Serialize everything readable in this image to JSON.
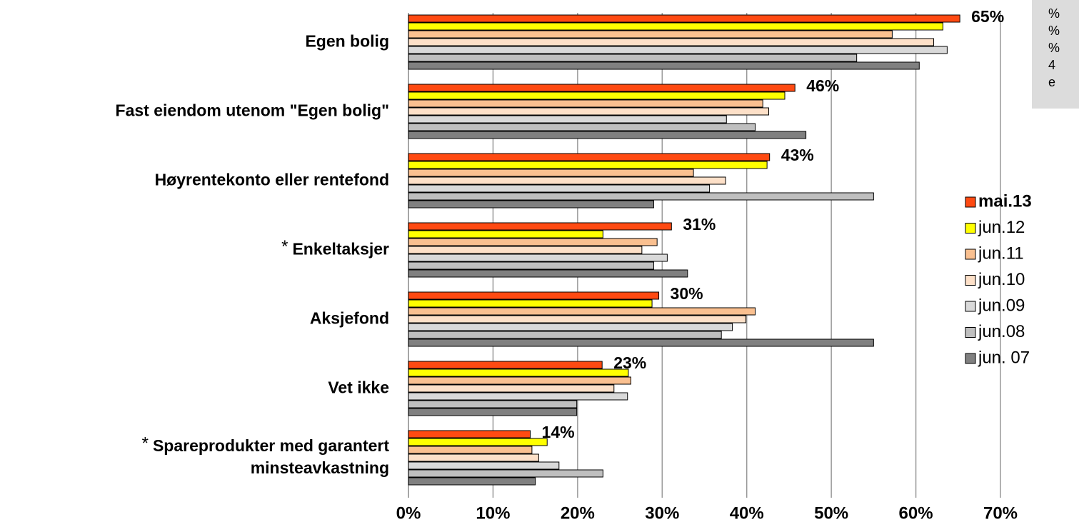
{
  "chart_data": {
    "type": "hbar",
    "categories": [
      "Egen bolig",
      "Fast eiendom utenom \"Egen bolig\"",
      "Høyrentekonto eller rentefond",
      "Enkeltaksjer",
      "Aksjefond",
      "Vet ikke",
      [
        "Spareprodukter med garantert",
        "minsteavkastning"
      ]
    ],
    "star_symbol": "*",
    "starred_categories": [
      3,
      6
    ],
    "series": [
      {
        "name": "mai.13",
        "color": "#ff4a12",
        "values": [
          65.2,
          45.7,
          42.7,
          31.1,
          29.6,
          22.9,
          14.4
        ],
        "value_labels": [
          "65%",
          "46%",
          "43%",
          "31%",
          "30%",
          "23%",
          "14%"
        ]
      },
      {
        "name": "jun.12",
        "color": "#ffff00",
        "values": [
          63.2,
          44.5,
          42.4,
          23.0,
          28.8,
          26.0,
          16.4
        ]
      },
      {
        "name": "jun.11",
        "color": "#fac090",
        "values": [
          57.2,
          41.9,
          33.7,
          29.4,
          41.0,
          26.3,
          14.6
        ]
      },
      {
        "name": "jun.10",
        "color": "#fde0c8",
        "values": [
          62.1,
          42.6,
          37.5,
          27.6,
          39.9,
          24.3,
          15.4
        ]
      },
      {
        "name": "jun.09",
        "color": "#d9d9d9",
        "values": [
          63.7,
          37.6,
          35.6,
          30.6,
          38.3,
          25.9,
          17.8
        ]
      },
      {
        "name": "jun.08",
        "color": "#bfbfbf",
        "values": [
          53.0,
          41.0,
          55.0,
          29.0,
          37.0,
          19.9,
          23.0
        ]
      },
      {
        "name": "jun. 07",
        "color": "#808080",
        "values": [
          60.4,
          47.0,
          29.0,
          33.0,
          55.0,
          19.9,
          15.0
        ]
      }
    ],
    "xlim": [
      0,
      70
    ],
    "xticks": [
      {
        "value": 0,
        "label": "0%"
      },
      {
        "value": 10,
        "label": "10%"
      },
      {
        "value": 20,
        "label": "20%"
      },
      {
        "value": 30,
        "label": "30%"
      },
      {
        "value": 40,
        "label": "40%"
      },
      {
        "value": 50,
        "label": "50%"
      },
      {
        "value": 60,
        "label": "60%"
      },
      {
        "value": 70,
        "label": "70%"
      }
    ],
    "grid": true,
    "legend": "right",
    "note_lines": [
      "%",
      "%",
      "%",
      "4",
      "e"
    ]
  }
}
